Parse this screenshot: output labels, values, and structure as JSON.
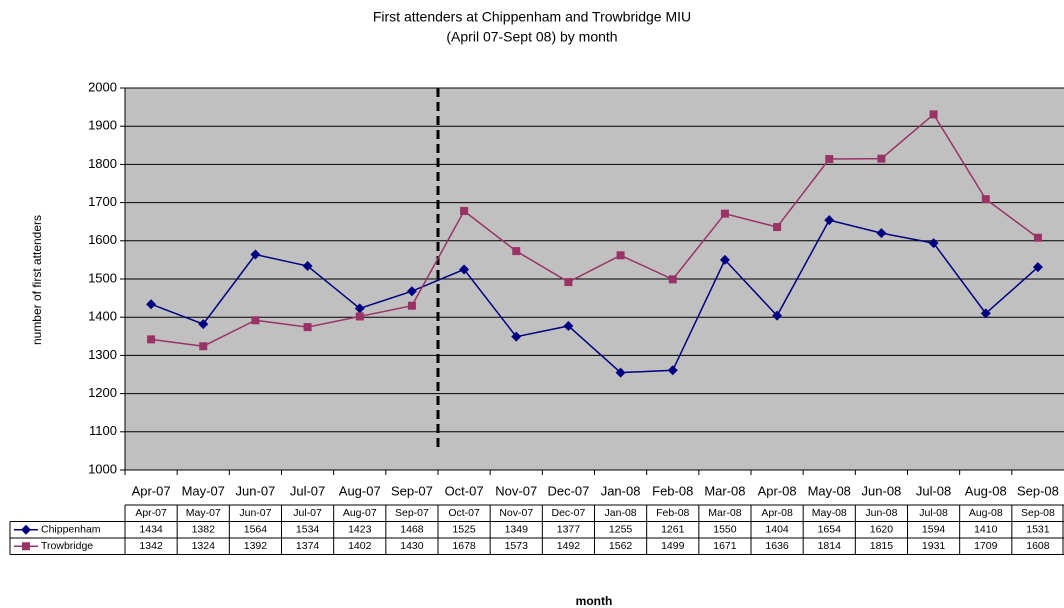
{
  "chart_data": {
    "type": "line",
    "title": "First attenders at Chippenham and Trowbridge MIU",
    "subtitle": "(April 07-Sept 08) by month",
    "x_label": "month",
    "y_label": "number of first attenders",
    "categories": [
      "Apr-07",
      "May-07",
      "Jun-07",
      "Jul-07",
      "Aug-07",
      "Sep-07",
      "Oct-07",
      "Nov-07",
      "Dec-07",
      "Jan-08",
      "Feb-08",
      "Mar-08",
      "Apr-08",
      "May-08",
      "Jun-08",
      "Jul-08",
      "Aug-08",
      "Sep-08"
    ],
    "series": [
      {
        "name": "Chippenham",
        "color": "#000080",
        "marker": "diamond",
        "values": [
          1434,
          1382,
          1564,
          1534,
          1423,
          1468,
          1525,
          1349,
          1377,
          1255,
          1261,
          1550,
          1404,
          1654,
          1620,
          1594,
          1410,
          1531
        ]
      },
      {
        "name": "Trowbridge",
        "color": "#993366",
        "marker": "square",
        "values": [
          1342,
          1324,
          1392,
          1374,
          1402,
          1430,
          1678,
          1573,
          1492,
          1562,
          1499,
          1671,
          1636,
          1814,
          1815,
          1931,
          1709,
          1608
        ]
      }
    ],
    "ylim": [
      1000,
      2000
    ],
    "yticks": [
      1000,
      1100,
      1200,
      1300,
      1400,
      1500,
      1600,
      1700,
      1800,
      1900,
      2000
    ],
    "grid": true,
    "data_table": true
  }
}
